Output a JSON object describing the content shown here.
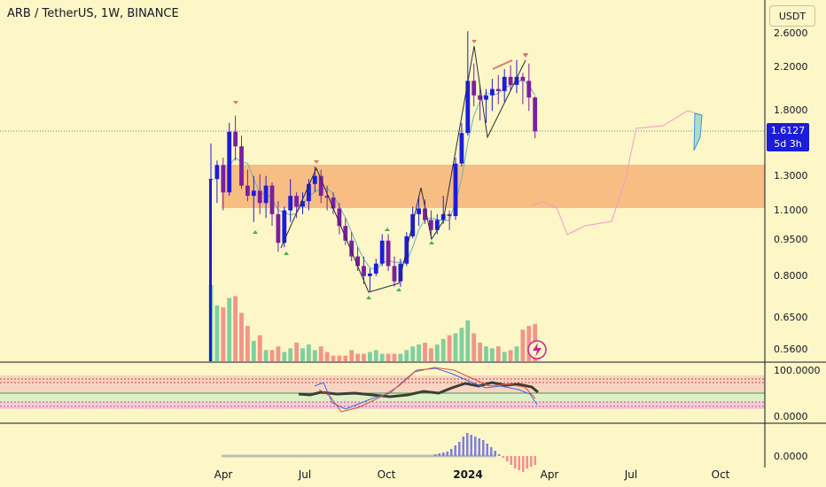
{
  "title": "ARB / TetherUS, 1W, BINANCE",
  "currency_button": "USDT",
  "last_price": "1.6127",
  "countdown": "5d 3h",
  "colors": {
    "background": "#fdf6c6",
    "bull_candle": "#1c1cdb",
    "bear_candle": "#7b1fa2",
    "zone": "#f7b77a",
    "volume_up": "#7fcf9f",
    "volume_down": "#f2958a",
    "line": "#131722"
  },
  "chart_data": {
    "type": "candlestick",
    "price_axis_labels": [
      "2.6000",
      "2.2000",
      "1.8000",
      "1.3000",
      "1.1000",
      "0.9500",
      "0.8000",
      "0.6500",
      "0.5600"
    ],
    "oscillator_axis_labels": [
      "100.0000",
      "0.0000"
    ],
    "histogram_axis_labels": [
      "0.0000"
    ],
    "time_axis_labels": [
      "Apr",
      "Jul",
      "Oct",
      "2024",
      "Apr",
      "Jul",
      "Oct"
    ],
    "ohlc": [
      [
        1.28,
        1.52,
        1.14,
        1.28
      ],
      [
        1.28,
        1.4,
        1.14,
        1.37
      ],
      [
        1.37,
        1.42,
        1.1,
        1.2
      ],
      [
        1.2,
        1.68,
        1.18,
        1.61
      ],
      [
        1.61,
        1.74,
        1.4,
        1.5
      ],
      [
        1.5,
        1.58,
        1.22,
        1.24
      ],
      [
        1.24,
        1.34,
        1.15,
        1.18
      ],
      [
        1.18,
        1.3,
        1.04,
        1.21
      ],
      [
        1.21,
        1.31,
        1.08,
        1.14
      ],
      [
        1.14,
        1.3,
        1.06,
        1.24
      ],
      [
        1.24,
        1.26,
        1.02,
        1.08
      ],
      [
        1.08,
        1.15,
        0.9,
        0.94
      ],
      [
        0.94,
        1.12,
        0.92,
        1.1
      ],
      [
        1.1,
        1.28,
        1.04,
        1.18
      ],
      [
        1.18,
        1.2,
        1.06,
        1.12
      ],
      [
        1.12,
        1.2,
        1.08,
        1.15
      ],
      [
        1.15,
        1.28,
        1.1,
        1.25
      ],
      [
        1.25,
        1.36,
        1.2,
        1.3
      ],
      [
        1.3,
        1.34,
        1.14,
        1.18
      ],
      [
        1.18,
        1.24,
        1.1,
        1.17
      ],
      [
        1.17,
        1.2,
        1.08,
        1.11
      ],
      [
        1.11,
        1.14,
        0.98,
        1.02
      ],
      [
        1.02,
        1.06,
        0.93,
        0.95
      ],
      [
        0.95,
        0.99,
        0.86,
        0.88
      ],
      [
        0.88,
        0.92,
        0.82,
        0.84
      ],
      [
        0.84,
        0.88,
        0.77,
        0.8
      ],
      [
        0.8,
        0.83,
        0.74,
        0.81
      ],
      [
        0.81,
        0.87,
        0.8,
        0.85
      ],
      [
        0.85,
        0.98,
        0.84,
        0.95
      ],
      [
        0.95,
        0.98,
        0.82,
        0.84
      ],
      [
        0.84,
        0.88,
        0.76,
        0.78
      ],
      [
        0.78,
        0.87,
        0.76,
        0.85
      ],
      [
        0.85,
        0.99,
        0.84,
        0.97
      ],
      [
        0.97,
        1.12,
        0.96,
        1.08
      ],
      [
        1.08,
        1.18,
        1.02,
        1.11
      ],
      [
        1.11,
        1.16,
        1.03,
        1.05
      ],
      [
        1.05,
        1.1,
        0.96,
        1.0
      ],
      [
        1.0,
        1.08,
        0.98,
        1.05
      ],
      [
        1.05,
        1.18,
        1.03,
        1.08
      ],
      [
        1.08,
        1.1,
        1.0,
        1.07
      ],
      [
        1.07,
        1.42,
        1.05,
        1.38
      ],
      [
        1.38,
        1.68,
        1.36,
        1.6
      ],
      [
        1.6,
        2.62,
        1.58,
        2.06
      ],
      [
        2.06,
        2.24,
        1.82,
        1.92
      ],
      [
        1.92,
        2.02,
        1.7,
        1.88
      ],
      [
        1.88,
        1.98,
        1.68,
        1.92
      ],
      [
        1.92,
        2.08,
        1.78,
        1.98
      ],
      [
        1.98,
        2.12,
        1.84,
        1.96
      ],
      [
        1.96,
        2.18,
        1.86,
        2.1
      ],
      [
        2.1,
        2.22,
        1.96,
        2.02
      ],
      [
        2.02,
        2.28,
        1.94,
        2.1
      ],
      [
        2.1,
        2.14,
        1.84,
        2.06
      ],
      [
        2.06,
        2.24,
        1.78,
        1.9
      ],
      [
        1.9,
        1.91,
        1.56,
        1.6127
      ]
    ],
    "volume": [
      0.82,
      0.6,
      0.58,
      0.68,
      0.7,
      0.52,
      0.38,
      0.22,
      0.28,
      0.12,
      0.12,
      0.16,
      0.1,
      0.14,
      0.2,
      0.14,
      0.18,
      0.12,
      0.16,
      0.1,
      0.06,
      0.06,
      0.06,
      0.12,
      0.08,
      0.08,
      0.1,
      0.12,
      0.08,
      0.08,
      0.08,
      0.08,
      0.12,
      0.16,
      0.18,
      0.2,
      0.14,
      0.18,
      0.24,
      0.28,
      0.3,
      0.36,
      0.44,
      0.3,
      0.2,
      0.16,
      0.14,
      0.16,
      0.1,
      0.12,
      0.16,
      0.34,
      0.38,
      0.4
    ]
  }
}
